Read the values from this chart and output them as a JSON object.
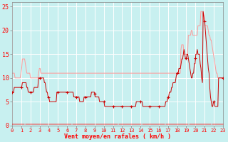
{
  "xlabel": "Vent moyen/en rafales ( km/h )",
  "bg_color": "#c8f0f0",
  "grid_color": "#ffffff",
  "ylim": [
    0,
    26
  ],
  "xlim": [
    0,
    287
  ],
  "yticks": [
    0,
    5,
    10,
    15,
    20,
    25
  ],
  "xtick_labels": [
    "0",
    "1",
    "2",
    "3",
    "4",
    "5",
    "6",
    "7",
    "8",
    "9",
    "10",
    "11",
    "12",
    "13",
    "14",
    "15",
    "16",
    "17",
    "18",
    "19",
    "20",
    "21",
    "22",
    "23"
  ],
  "line_light_color": "#ff9999",
  "line_dark_color": "#cc0000",
  "figsize": [
    3.2,
    2.0
  ],
  "dpi": 100,
  "light_line": [
    11,
    11,
    11,
    11,
    10,
    10,
    10,
    10,
    10,
    10,
    10,
    10,
    11,
    12,
    14,
    14,
    14,
    14,
    13,
    12,
    11,
    11,
    11,
    11,
    11,
    10,
    10,
    10,
    10,
    10,
    10,
    10,
    10,
    10,
    10,
    10,
    11,
    12,
    12,
    11,
    11,
    11,
    11,
    11,
    11,
    11,
    11,
    11,
    11,
    11,
    11,
    11,
    11,
    11,
    11,
    11,
    11,
    11,
    11,
    11,
    11,
    11,
    11,
    11,
    11,
    11,
    11,
    11,
    11,
    11,
    11,
    11,
    11,
    11,
    11,
    11,
    11,
    11,
    11,
    11,
    11,
    11,
    11,
    11,
    11,
    11,
    11,
    11,
    11,
    11,
    11,
    11,
    11,
    11,
    11,
    11,
    11,
    11,
    11,
    11,
    11,
    11,
    11,
    11,
    11,
    11,
    11,
    11,
    11,
    11,
    11,
    11,
    11,
    11,
    11,
    11,
    11,
    11,
    11,
    11,
    11,
    11,
    11,
    11,
    11,
    11,
    11,
    11,
    11,
    11,
    11,
    11,
    11,
    11,
    11,
    11,
    11,
    11,
    11,
    11,
    11,
    11,
    11,
    11,
    11,
    11,
    11,
    11,
    11,
    11,
    11,
    11,
    11,
    11,
    11,
    11,
    11,
    11,
    11,
    11,
    11,
    11,
    11,
    11,
    11,
    11,
    11,
    11,
    11,
    11,
    11,
    11,
    11,
    11,
    11,
    11,
    11,
    11,
    11,
    11,
    11,
    11,
    11,
    11,
    11,
    11,
    11,
    11,
    11,
    11,
    11,
    11,
    11,
    11,
    11,
    11,
    11,
    11,
    11,
    11,
    11,
    11,
    11,
    11,
    11,
    11,
    11,
    11,
    11,
    11,
    11,
    11,
    11,
    11,
    11,
    11,
    11,
    11,
    11,
    11,
    11,
    11,
    11,
    11,
    11,
    11,
    11,
    11,
    11,
    16,
    17,
    17,
    17,
    15,
    15,
    15,
    15,
    15,
    15,
    19,
    19,
    19,
    19,
    20,
    20,
    19,
    19,
    19,
    19,
    19,
    19,
    19,
    21,
    21,
    21,
    21,
    24,
    24,
    24,
    23,
    22,
    22,
    21,
    21,
    21,
    21,
    20,
    19,
    19,
    18,
    18,
    17,
    16,
    15,
    14,
    13,
    12,
    11,
    11,
    10,
    10,
    10,
    10,
    10,
    10,
    10,
    10
  ],
  "dark_line": [
    7,
    7,
    7,
    8,
    8,
    8,
    8,
    8,
    8,
    8,
    8,
    8,
    8,
    8,
    9,
    9,
    9,
    9,
    9,
    9,
    8,
    8,
    7,
    7,
    7,
    7,
    7,
    7,
    7,
    7,
    8,
    8,
    8,
    8,
    8,
    8,
    10,
    10,
    10,
    10,
    10,
    10,
    10,
    10,
    9,
    9,
    8,
    7,
    7,
    6,
    6,
    5,
    5,
    5,
    5,
    5,
    5,
    5,
    5,
    5,
    5,
    7,
    7,
    7,
    7,
    7,
    7,
    7,
    7,
    7,
    7,
    7,
    7,
    7,
    7,
    7,
    7,
    7,
    7,
    7,
    7,
    7,
    7,
    7,
    6,
    6,
    6,
    6,
    6,
    6,
    6,
    6,
    5,
    5,
    5,
    5,
    5,
    5,
    6,
    6,
    6,
    6,
    6,
    6,
    6,
    6,
    6,
    6,
    7,
    7,
    7,
    7,
    7,
    6,
    6,
    6,
    6,
    6,
    6,
    5,
    5,
    5,
    5,
    5,
    5,
    5,
    4,
    4,
    4,
    4,
    4,
    4,
    4,
    4,
    4,
    4,
    4,
    4,
    4,
    4,
    4,
    4,
    4,
    4,
    4,
    4,
    4,
    4,
    4,
    4,
    4,
    4,
    4,
    4,
    4,
    4,
    4,
    4,
    4,
    4,
    4,
    4,
    4,
    4,
    4,
    4,
    4,
    4,
    4,
    5,
    5,
    5,
    5,
    5,
    5,
    5,
    5,
    5,
    4,
    4,
    4,
    4,
    4,
    4,
    4,
    4,
    4,
    4,
    4,
    4,
    4,
    4,
    4,
    4,
    4,
    4,
    4,
    4,
    4,
    4,
    4,
    4,
    4,
    4,
    4,
    4,
    4,
    4,
    4,
    5,
    5,
    5,
    6,
    6,
    7,
    7,
    7,
    8,
    8,
    9,
    9,
    9,
    9,
    10,
    11,
    11,
    11,
    12,
    12,
    12,
    13,
    14,
    14,
    15,
    16,
    15,
    14,
    14,
    15,
    15,
    14,
    13,
    12,
    11,
    10,
    10,
    11,
    11,
    13,
    13,
    15,
    15,
    16,
    15,
    15,
    15,
    13,
    12,
    10,
    9,
    24,
    23,
    22,
    20,
    18,
    16,
    14,
    12,
    11,
    8,
    6,
    5,
    4,
    4,
    5,
    5,
    4,
    4,
    4,
    4,
    4,
    10,
    10,
    10,
    10,
    10,
    10,
    10
  ]
}
